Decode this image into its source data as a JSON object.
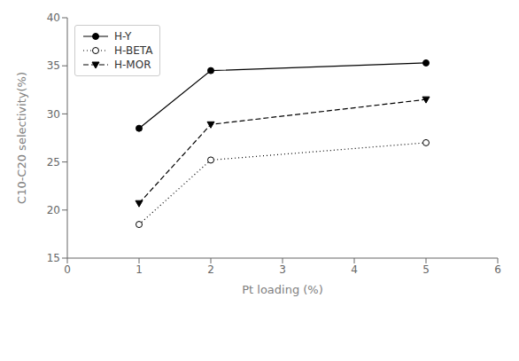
{
  "chart_data": {
    "type": "line",
    "xlabel": "Pt loading (%)",
    "ylabel": "C10-C20 selectivity(%)",
    "xlim": [
      0,
      6
    ],
    "xticks": [
      0,
      1,
      2,
      3,
      4,
      5,
      6
    ],
    "ylim": [
      15,
      40
    ],
    "yticks": [
      15,
      20,
      25,
      30,
      35,
      40
    ],
    "grid": false,
    "legend": "upper left",
    "series": [
      {
        "name": "H-Y",
        "x": [
          1,
          2,
          5
        ],
        "values": [
          28.5,
          34.5,
          35.3
        ],
        "color": "#000000",
        "marker": "circle",
        "line_style": "solid"
      },
      {
        "name": "H-BETA",
        "x": [
          1,
          2,
          5
        ],
        "values": [
          18.5,
          25.2,
          27.0
        ],
        "color": "#000000",
        "marker": "circle_open",
        "line_style": "dotted"
      },
      {
        "name": "H-MOR",
        "x": [
          1,
          2,
          5
        ],
        "values": [
          20.7,
          28.9,
          31.5
        ],
        "color": "#000000",
        "marker": "triangle_down",
        "line_style": "dashed"
      }
    ]
  }
}
